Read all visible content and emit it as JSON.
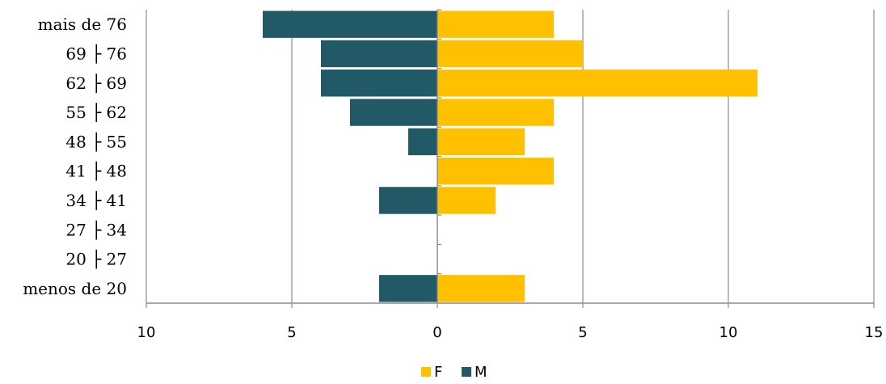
{
  "chart_data": {
    "type": "bar",
    "orientation": "horizontal",
    "layout": "population-pyramid",
    "categories": [
      "menos de 20",
      "20 ├ 27",
      "27 ├ 34",
      "34 ├ 41",
      "41 ├ 48",
      "48 ├ 55",
      "55 ├ 62",
      "62 ├ 69",
      "69 ├ 76",
      "mais de 76"
    ],
    "series": [
      {
        "name": "F",
        "values": [
          3,
          0,
          0,
          2,
          4,
          3,
          4,
          11,
          5,
          4
        ],
        "color": "#FFC000",
        "direction": "positive"
      },
      {
        "name": "M",
        "values": [
          2,
          0,
          0,
          2,
          0,
          1,
          3,
          4,
          4,
          6
        ],
        "color": "#215A66",
        "direction": "negative"
      }
    ],
    "x_ticks": [
      {
        "value": -10,
        "label": "10"
      },
      {
        "value": -5,
        "label": "5"
      },
      {
        "value": 0,
        "label": "0"
      },
      {
        "value": 5,
        "label": "5"
      },
      {
        "value": 10,
        "label": "10"
      },
      {
        "value": 15,
        "label": "15"
      }
    ],
    "xlim": [
      -10,
      15
    ],
    "grid": true,
    "legend": "bottom",
    "title": "",
    "xlabel": "",
    "ylabel": ""
  }
}
